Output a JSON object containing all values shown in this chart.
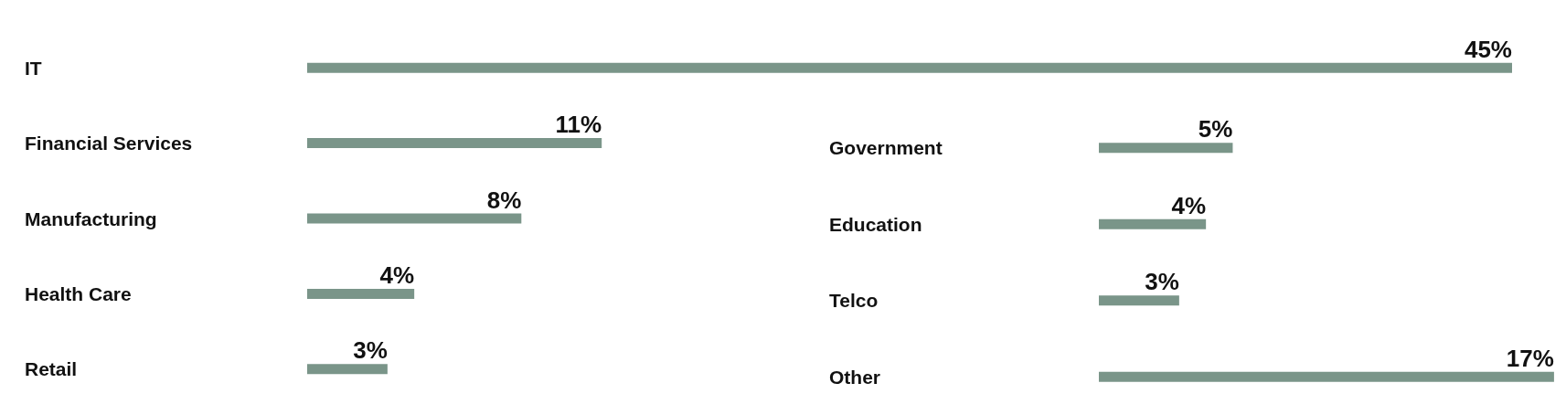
{
  "chart_data": [
    {
      "type": "bar",
      "orientation": "horizontal",
      "categories": [
        "IT",
        "Financial Services",
        "Manufacturing",
        "Health Care",
        "Retail"
      ],
      "series": [
        {
          "color": "#7a9589",
          "values": [
            45,
            11,
            8,
            4,
            3
          ],
          "value_labels": [
            "45%",
            "11%",
            "8%",
            "4%",
            "3%"
          ]
        }
      ]
    },
    {
      "type": "bar",
      "orientation": "horizontal",
      "categories": [
        "Government",
        "Education",
        "Telco",
        "Other"
      ],
      "series": [
        {
          "color": "#7a9589",
          "values": [
            5,
            4,
            3,
            17
          ],
          "value_labels": [
            "5%",
            "4%",
            "3%",
            "17%"
          ]
        }
      ]
    }
  ]
}
